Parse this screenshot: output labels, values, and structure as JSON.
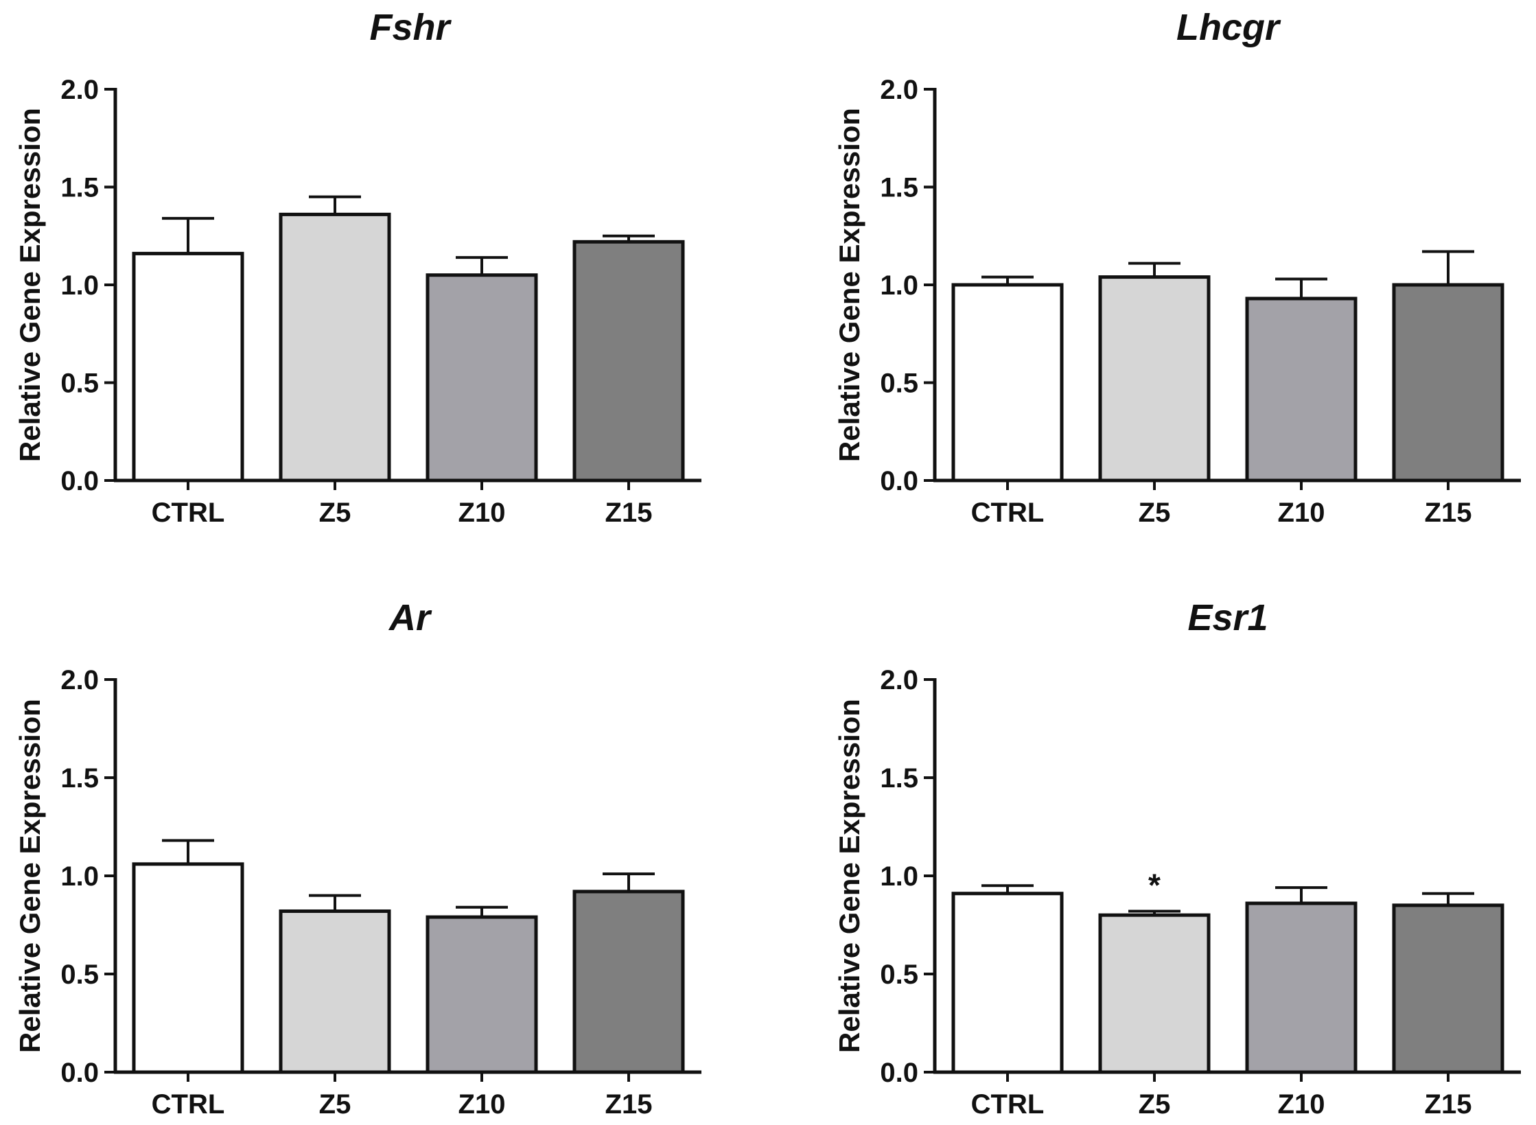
{
  "chart_data": [
    {
      "type": "bar",
      "title": "Fshr",
      "ylabel": "Relative Gene Expression",
      "xlabel": "",
      "ylim": [
        0,
        2.0
      ],
      "yticks": [
        "0.0",
        "0.5",
        "1.0",
        "1.5",
        "2.0"
      ],
      "categories": [
        "CTRL",
        "Z5",
        "Z10",
        "Z15"
      ],
      "values": [
        1.16,
        1.36,
        1.05,
        1.22
      ],
      "errors": [
        0.18,
        0.09,
        0.09,
        0.03
      ],
      "colors": [
        "#ffffff",
        "#d6d6d6",
        "#a3a2a8",
        "#7f7f7f"
      ],
      "annotations": [
        "",
        "",
        "",
        ""
      ]
    },
    {
      "type": "bar",
      "title": "Lhcgr",
      "ylabel": "Relative Gene Expression",
      "xlabel": "",
      "ylim": [
        0,
        2.0
      ],
      "yticks": [
        "0.0",
        "0.5",
        "1.0",
        "1.5",
        "2.0"
      ],
      "categories": [
        "CTRL",
        "Z5",
        "Z10",
        "Z15"
      ],
      "values": [
        1.0,
        1.04,
        0.93,
        1.0
      ],
      "errors": [
        0.04,
        0.07,
        0.1,
        0.17
      ],
      "colors": [
        "#ffffff",
        "#d6d6d6",
        "#a3a2a8",
        "#7f7f7f"
      ],
      "annotations": [
        "",
        "",
        "",
        ""
      ]
    },
    {
      "type": "bar",
      "title": "Ar",
      "ylabel": "Relative Gene Expression",
      "xlabel": "",
      "ylim": [
        0,
        2.0
      ],
      "yticks": [
        "0.0",
        "0.5",
        "1.0",
        "1.5",
        "2.0"
      ],
      "categories": [
        "CTRL",
        "Z5",
        "Z10",
        "Z15"
      ],
      "values": [
        1.06,
        0.82,
        0.79,
        0.92
      ],
      "errors": [
        0.12,
        0.08,
        0.05,
        0.09
      ],
      "colors": [
        "#ffffff",
        "#d6d6d6",
        "#a3a2a8",
        "#7f7f7f"
      ],
      "annotations": [
        "",
        "",
        "",
        ""
      ]
    },
    {
      "type": "bar",
      "title": "Esr1",
      "ylabel": "Relative Gene Expression",
      "xlabel": "",
      "ylim": [
        0,
        2.0
      ],
      "yticks": [
        "0.0",
        "0.5",
        "1.0",
        "1.5",
        "2.0"
      ],
      "categories": [
        "CTRL",
        "Z5",
        "Z10",
        "Z15"
      ],
      "values": [
        0.91,
        0.8,
        0.86,
        0.85
      ],
      "errors": [
        0.04,
        0.02,
        0.08,
        0.06
      ],
      "colors": [
        "#ffffff",
        "#d6d6d6",
        "#a3a2a8",
        "#7f7f7f"
      ],
      "annotations": [
        "",
        "*",
        "",
        ""
      ]
    }
  ]
}
